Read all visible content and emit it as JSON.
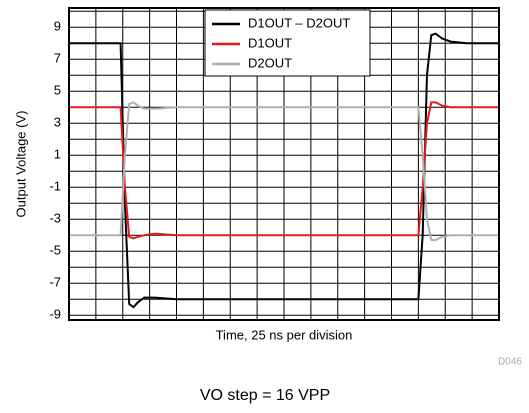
{
  "chart_data": {
    "type": "line",
    "y_label": "Output Voltage (V)",
    "x_label": "Time, 25 ns per division",
    "caption": "VO step = 16 VPP",
    "figure_id": "D046",
    "x": [
      0,
      48,
      52,
      56,
      60,
      64,
      70,
      80,
      100,
      200,
      325,
      329,
      333,
      337,
      341,
      347,
      355,
      370,
      400
    ],
    "series": [
      {
        "name": "D1OUT – D2OUT",
        "color": "#000000",
        "values": [
          8,
          8,
          -2,
          -8.3,
          -8.5,
          -8.2,
          -7.9,
          -7.9,
          -8,
          -8,
          -8,
          -4,
          6,
          8.5,
          8.6,
          8.3,
          8.1,
          8,
          8
        ]
      },
      {
        "name": "D1OUT",
        "color": "#e41a1c",
        "values": [
          4,
          4,
          -1,
          -4.1,
          -4.2,
          -4.1,
          -4,
          -3.9,
          -4,
          -4,
          -4,
          -1,
          3,
          4.3,
          4.3,
          4.1,
          4,
          4,
          4
        ]
      },
      {
        "name": "D2OUT",
        "color": "#b0b0b0",
        "values": [
          -4,
          -4,
          1,
          4.2,
          4.3,
          4.1,
          3.9,
          3.9,
          4,
          4,
          4,
          1,
          -3,
          -4.3,
          -4.3,
          -4.1,
          -4,
          -4,
          -4
        ]
      }
    ],
    "xlim": [
      0,
      400
    ],
    "xticks": [
      0,
      25,
      50,
      75,
      100,
      125,
      150,
      175,
      200,
      225,
      250,
      275,
      300,
      325,
      350,
      375,
      400
    ],
    "ylim": [
      -9.3,
      10.2
    ],
    "yticks": [
      -9,
      -7,
      -5,
      -3,
      -1,
      1,
      3,
      5,
      7,
      9
    ],
    "minor_yticks": [
      -8,
      -6,
      -4,
      -2,
      0,
      2,
      4,
      6,
      8,
      10
    ],
    "grid": true
  }
}
